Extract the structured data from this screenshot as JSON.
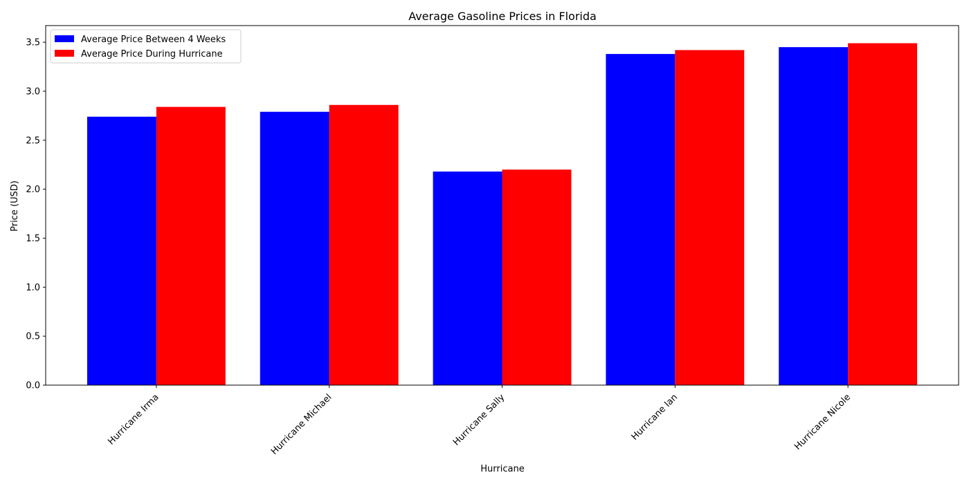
{
  "chart_data": {
    "type": "bar",
    "title": "Average Gasoline Prices in Florida",
    "xlabel": "Hurricane",
    "ylabel": "Price (USD)",
    "categories": [
      "Hurricane Irma",
      "Hurricane Michael",
      "Hurricane Sally",
      "Hurricane Ian",
      "Hurricane Nicole"
    ],
    "series": [
      {
        "name": "Average Price Between 4 Weeks",
        "color": "#0000ff",
        "values": [
          2.74,
          2.79,
          2.18,
          3.38,
          3.45
        ]
      },
      {
        "name": "Average Price During Hurricane",
        "color": "#ff0000",
        "values": [
          2.84,
          2.86,
          2.2,
          3.42,
          3.49
        ]
      }
    ],
    "ylim": [
      0,
      3.67
    ],
    "yticks": [
      "0.0",
      "0.5",
      "1.0",
      "1.5",
      "2.0",
      "2.5",
      "3.0",
      "3.5"
    ],
    "grid": false,
    "legend": "top-left",
    "xtick_rotation": 45
  }
}
